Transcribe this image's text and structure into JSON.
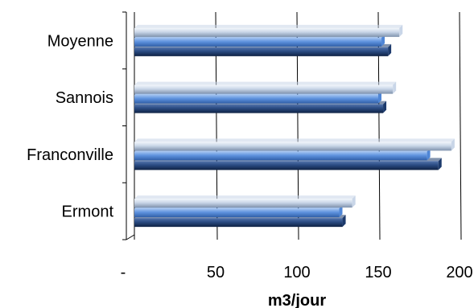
{
  "chart_data": {
    "type": "bar",
    "orientation": "horizontal",
    "style": "3d-cylinder-bars",
    "categories": [
      "Ermont",
      "Franconville",
      "Sannois",
      "Moyenne"
    ],
    "series": [
      {
        "values": [
          128,
          187,
          153,
          156
        ],
        "color": "#1c3a6c"
      },
      {
        "values": [
          126,
          180,
          150,
          152
        ],
        "color": "#4f86d6"
      },
      {
        "values": [
          134,
          195,
          159,
          163
        ],
        "color": "#c9d6e8"
      }
    ],
    "xlabel": "m3/jour",
    "ylabel": "",
    "title": "",
    "xlim": [
      0,
      200
    ],
    "x_ticks": [
      0,
      50,
      100,
      150,
      200
    ],
    "x_tick_labels": [
      "-",
      "50",
      "100",
      "150",
      "200"
    ],
    "grid": true,
    "legend": "none",
    "colors": {
      "gridline": "#000000",
      "axis": "#000000"
    }
  }
}
